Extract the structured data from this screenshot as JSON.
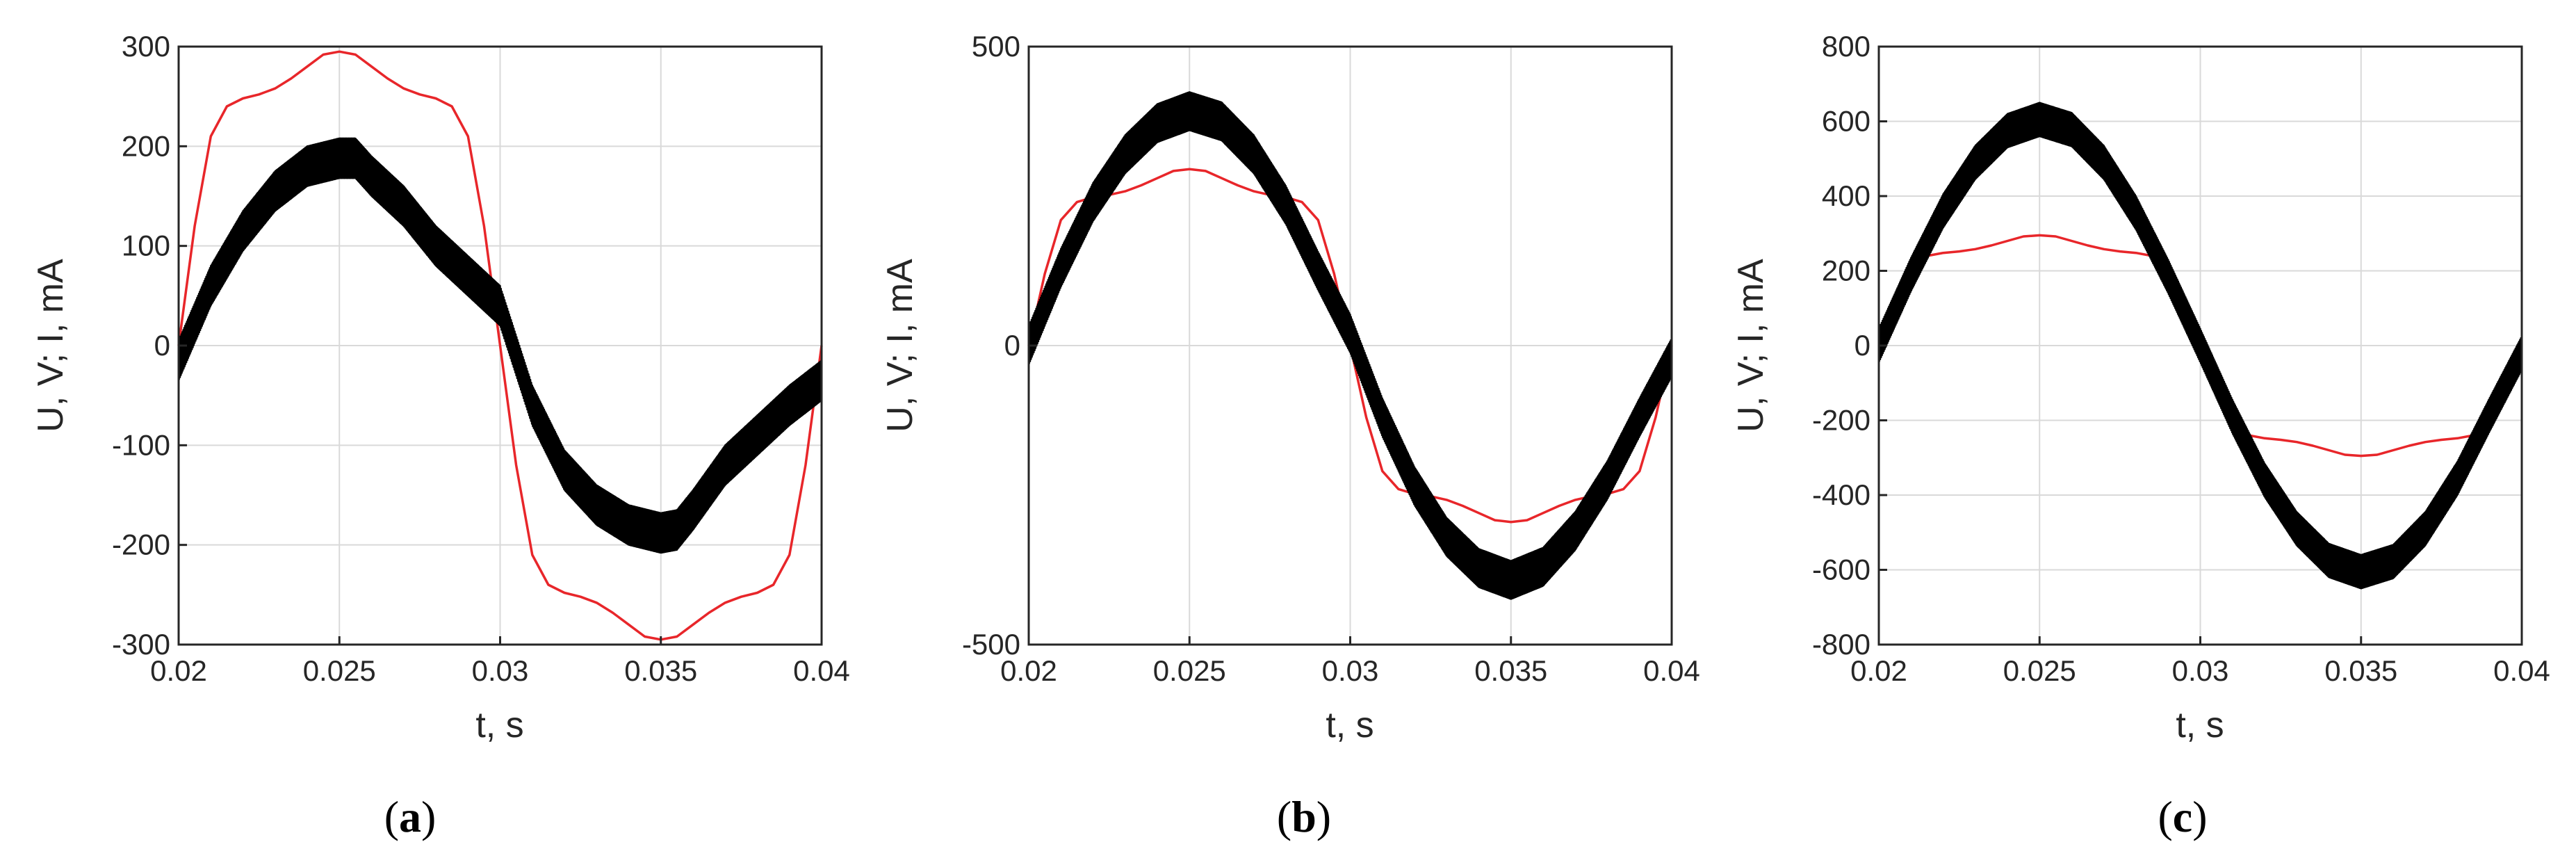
{
  "colors": {
    "current": "#000000",
    "voltage": "#e8262a",
    "grid": "#d9d9d9",
    "frame": "#262626"
  },
  "chart_data": [
    {
      "type": "line",
      "panel": "a",
      "caption": {
        "open": "(",
        "letter": "a",
        "close": ")"
      },
      "xlabel": "t, s",
      "ylabel": "U, V; I, mA",
      "xlim": [
        0.02,
        0.04
      ],
      "ylim": [
        -300,
        300
      ],
      "xticks": [
        "0.02",
        "0.025",
        "0.03",
        "0.035",
        "0.04"
      ],
      "yticks": [
        "-300",
        "-200",
        "-100",
        "0",
        "100",
        "200",
        "300"
      ],
      "grid": true,
      "series": [
        {
          "color": "#e8262a",
          "x": [
            0.02,
            0.0205,
            0.021,
            0.0215,
            0.022,
            0.0225,
            0.023,
            0.0235,
            0.024,
            0.0245,
            0.025,
            0.0255,
            0.026,
            0.0265,
            0.027,
            0.0275,
            0.028,
            0.0285,
            0.029,
            0.0295,
            0.03,
            0.0305,
            0.031,
            0.0315,
            0.032,
            0.0325,
            0.033,
            0.0335,
            0.034,
            0.0345,
            0.035,
            0.0355,
            0.036,
            0.0365,
            0.037,
            0.0375,
            0.038,
            0.0385,
            0.039,
            0.0395,
            0.04
          ],
          "y": [
            0,
            120,
            210,
            240,
            248,
            252,
            258,
            268,
            280,
            292,
            295,
            292,
            280,
            268,
            258,
            252,
            248,
            240,
            210,
            120,
            0,
            -120,
            -210,
            -240,
            -248,
            -252,
            -258,
            -268,
            -280,
            -292,
            -295,
            -292,
            -280,
            -268,
            -258,
            -252,
            -248,
            -240,
            -210,
            -120,
            0
          ]
        },
        {
          "color": "#000000",
          "ripple": 20,
          "x": [
            0.02,
            0.021,
            0.022,
            0.023,
            0.024,
            0.025,
            0.0255,
            0.026,
            0.027,
            0.028,
            0.029,
            0.03,
            0.031,
            0.032,
            0.033,
            0.034,
            0.035,
            0.0355,
            0.036,
            0.037,
            0.038,
            0.039,
            0.04
          ],
          "y": [
            -15,
            60,
            115,
            155,
            180,
            188,
            188,
            170,
            140,
            100,
            70,
            40,
            -60,
            -125,
            -160,
            -180,
            -188,
            -185,
            -165,
            -120,
            -90,
            -60,
            -35
          ]
        }
      ]
    },
    {
      "type": "line",
      "panel": "b",
      "caption": {
        "open": "(",
        "letter": "b",
        "close": ")"
      },
      "xlabel": "t, s",
      "ylabel": "U, V; I, mA",
      "xlim": [
        0.02,
        0.04
      ],
      "ylim": [
        -500,
        500
      ],
      "xticks": [
        "0.02",
        "0.025",
        "0.03",
        "0.035",
        "0.04"
      ],
      "yticks": [
        "-500",
        "0",
        "500"
      ],
      "grid": true,
      "series": [
        {
          "color": "#e8262a",
          "x": [
            0.02,
            0.0205,
            0.021,
            0.0215,
            0.022,
            0.0225,
            0.023,
            0.0235,
            0.024,
            0.0245,
            0.025,
            0.0255,
            0.026,
            0.0265,
            0.027,
            0.0275,
            0.028,
            0.0285,
            0.029,
            0.0295,
            0.03,
            0.0305,
            0.031,
            0.0315,
            0.032,
            0.0325,
            0.033,
            0.0335,
            0.034,
            0.0345,
            0.035,
            0.0355,
            0.036,
            0.0365,
            0.037,
            0.0375,
            0.038,
            0.0385,
            0.039,
            0.0395,
            0.04
          ],
          "y": [
            0,
            120,
            210,
            240,
            248,
            252,
            258,
            268,
            280,
            292,
            295,
            292,
            280,
            268,
            258,
            252,
            248,
            240,
            210,
            120,
            0,
            -120,
            -210,
            -240,
            -248,
            -252,
            -258,
            -268,
            -280,
            -292,
            -295,
            -292,
            -280,
            -268,
            -258,
            -252,
            -248,
            -240,
            -210,
            -120,
            0
          ]
        },
        {
          "color": "#000000",
          "ripple": 32,
          "x": [
            0.02,
            0.021,
            0.022,
            0.023,
            0.024,
            0.025,
            0.026,
            0.027,
            0.028,
            0.029,
            0.03,
            0.031,
            0.032,
            0.033,
            0.034,
            0.035,
            0.036,
            0.037,
            0.038,
            0.039,
            0.04
          ],
          "y": [
            0,
            130,
            240,
            320,
            372,
            392,
            375,
            320,
            235,
            125,
            20,
            -120,
            -235,
            -320,
            -372,
            -392,
            -370,
            -310,
            -225,
            -120,
            -20
          ]
        }
      ]
    },
    {
      "type": "line",
      "panel": "c",
      "caption": {
        "open": "(",
        "letter": "c",
        "close": ")"
      },
      "xlabel": "t, s",
      "ylabel": "U, V; I, mA",
      "xlim": [
        0.02,
        0.04
      ],
      "ylim": [
        -800,
        800
      ],
      "xticks": [
        "0.02",
        "0.025",
        "0.03",
        "0.035",
        "0.04"
      ],
      "yticks": [
        "-800",
        "-600",
        "-400",
        "-200",
        "0",
        "200",
        "400",
        "600",
        "800"
      ],
      "grid": true,
      "series": [
        {
          "color": "#e8262a",
          "x": [
            0.02,
            0.0205,
            0.021,
            0.0215,
            0.022,
            0.0225,
            0.023,
            0.0235,
            0.024,
            0.0245,
            0.025,
            0.0255,
            0.026,
            0.0265,
            0.027,
            0.0275,
            0.028,
            0.0285,
            0.029,
            0.0295,
            0.03,
            0.0305,
            0.031,
            0.0315,
            0.032,
            0.0325,
            0.033,
            0.0335,
            0.034,
            0.0345,
            0.035,
            0.0355,
            0.036,
            0.0365,
            0.037,
            0.0375,
            0.038,
            0.0385,
            0.039,
            0.0395,
            0.04
          ],
          "y": [
            0,
            120,
            210,
            240,
            248,
            252,
            258,
            268,
            280,
            292,
            295,
            292,
            280,
            268,
            258,
            252,
            248,
            240,
            210,
            120,
            0,
            -120,
            -210,
            -240,
            -248,
            -252,
            -258,
            -268,
            -280,
            -292,
            -295,
            -292,
            -280,
            -268,
            -258,
            -252,
            -248,
            -240,
            -210,
            -120,
            0
          ]
        },
        {
          "color": "#000000",
          "ripple": 45,
          "x": [
            0.02,
            0.021,
            0.022,
            0.023,
            0.024,
            0.025,
            0.026,
            0.027,
            0.028,
            0.029,
            0.03,
            0.031,
            0.032,
            0.033,
            0.034,
            0.035,
            0.036,
            0.037,
            0.038,
            0.039,
            0.04
          ],
          "y": [
            0,
            190,
            360,
            490,
            575,
            605,
            578,
            490,
            355,
            185,
            0,
            -190,
            -360,
            -490,
            -575,
            -605,
            -578,
            -490,
            -355,
            -185,
            -20
          ]
        }
      ]
    }
  ]
}
